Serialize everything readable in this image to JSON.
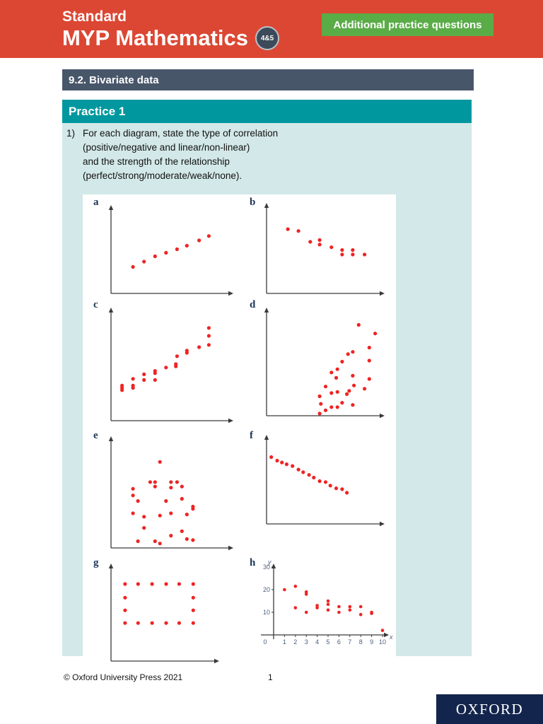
{
  "header": {
    "edition": "Standard",
    "title": "MYP Mathematics",
    "badge": "4&5",
    "button_label": "Additional practice questions"
  },
  "section_bar": {
    "title": "9.2. Bivariate data"
  },
  "practice": {
    "title": "Practice 1",
    "question": {
      "number": "1)",
      "lines": [
        "For each diagram, state the type of correlation",
        "(positive/negative and linear/non-linear)",
        "and the strength of the relationship",
        "(perfect/strong/moderate/weak/none)."
      ]
    }
  },
  "chart_data": [
    {
      "id": "a",
      "type": "scatter",
      "points_norm": [
        [
          18,
          30
        ],
        [
          27,
          36
        ],
        [
          36,
          42
        ],
        [
          45,
          46
        ],
        [
          54,
          50
        ],
        [
          62,
          54
        ],
        [
          72,
          60
        ],
        [
          80,
          65
        ]
      ]
    },
    {
      "id": "b",
      "type": "scatter",
      "points_norm": [
        [
          18,
          71
        ],
        [
          27,
          69
        ],
        [
          37,
          57
        ],
        [
          45,
          59
        ],
        [
          45,
          54
        ],
        [
          55,
          51
        ],
        [
          64,
          48
        ],
        [
          64,
          43
        ],
        [
          73,
          48
        ],
        [
          73,
          43
        ],
        [
          83,
          43
        ]
      ]
    },
    {
      "id": "c",
      "type": "scatter",
      "points_norm": [
        [
          9,
          31
        ],
        [
          9,
          29
        ],
        [
          9,
          27
        ],
        [
          18,
          37
        ],
        [
          18,
          31
        ],
        [
          18,
          29
        ],
        [
          27,
          41
        ],
        [
          27,
          36
        ],
        [
          36,
          44
        ],
        [
          36,
          42
        ],
        [
          36,
          36
        ],
        [
          45,
          47
        ],
        [
          53,
          50
        ],
        [
          53,
          48
        ],
        [
          54,
          57
        ],
        [
          62,
          62
        ],
        [
          62,
          60
        ],
        [
          72,
          65
        ],
        [
          80,
          82
        ],
        [
          80,
          75
        ],
        [
          80,
          67
        ]
      ]
    },
    {
      "id": "d",
      "type": "scatter",
      "points_norm": [
        [
          78,
          84
        ],
        [
          92,
          76
        ],
        [
          87,
          63
        ],
        [
          69,
          57
        ],
        [
          73,
          59
        ],
        [
          87,
          51
        ],
        [
          64,
          50
        ],
        [
          55,
          40
        ],
        [
          60,
          43
        ],
        [
          59,
          35
        ],
        [
          73,
          37
        ],
        [
          87,
          34
        ],
        [
          50,
          27
        ],
        [
          74,
          28
        ],
        [
          83,
          25
        ],
        [
          55,
          21
        ],
        [
          60,
          22
        ],
        [
          68,
          20
        ],
        [
          70,
          23
        ],
        [
          45,
          18
        ],
        [
          64,
          12
        ],
        [
          73,
          10
        ],
        [
          46,
          11
        ],
        [
          55,
          8
        ],
        [
          60,
          8
        ],
        [
          45,
          2
        ],
        [
          50,
          5
        ]
      ]
    },
    {
      "id": "e",
      "type": "scatter",
      "points_norm": [
        [
          40,
          77
        ],
        [
          32,
          59
        ],
        [
          36,
          59
        ],
        [
          36,
          55
        ],
        [
          49,
          59
        ],
        [
          54,
          59
        ],
        [
          49,
          54
        ],
        [
          58,
          55
        ],
        [
          18,
          53
        ],
        [
          18,
          47
        ],
        [
          22,
          42
        ],
        [
          45,
          42
        ],
        [
          58,
          44
        ],
        [
          67,
          37
        ],
        [
          67,
          35
        ],
        [
          18,
          31
        ],
        [
          27,
          28
        ],
        [
          40,
          29
        ],
        [
          49,
          31
        ],
        [
          62,
          30
        ],
        [
          27,
          18
        ],
        [
          58,
          15
        ],
        [
          49,
          11
        ],
        [
          62,
          8
        ],
        [
          67,
          7
        ],
        [
          22,
          6
        ],
        [
          36,
          6
        ],
        [
          40,
          4
        ]
      ]
    },
    {
      "id": "f",
      "type": "scatter",
      "points_norm": [
        [
          4,
          75
        ],
        [
          9,
          71
        ],
        [
          13,
          69
        ],
        [
          17,
          67
        ],
        [
          22,
          65
        ],
        [
          27,
          61
        ],
        [
          31,
          58
        ],
        [
          36,
          55
        ],
        [
          40,
          52
        ],
        [
          45,
          48
        ],
        [
          50,
          47
        ],
        [
          54,
          43
        ],
        [
          59,
          40
        ],
        [
          64,
          39
        ],
        [
          68,
          35
        ]
      ]
    },
    {
      "id": "g",
      "type": "scatter",
      "points_norm": [
        [
          13,
          79
        ],
        [
          25,
          79
        ],
        [
          38,
          79
        ],
        [
          51,
          79
        ],
        [
          63,
          79
        ],
        [
          76,
          79
        ],
        [
          13,
          65
        ],
        [
          76,
          65
        ],
        [
          13,
          52
        ],
        [
          76,
          52
        ],
        [
          13,
          39
        ],
        [
          25,
          39
        ],
        [
          38,
          39
        ],
        [
          51,
          39
        ],
        [
          63,
          39
        ],
        [
          76,
          39
        ]
      ]
    },
    {
      "id": "h",
      "type": "scatter",
      "xlabel": "x",
      "ylabel": "y",
      "origin_label": "0",
      "x_ticks": [
        1,
        2,
        3,
        4,
        5,
        6,
        7,
        8,
        9,
        10
      ],
      "y_ticks": [
        10,
        20,
        30
      ],
      "xlim": [
        0,
        10.5
      ],
      "ylim": [
        0,
        32
      ],
      "points": [
        [
          1,
          20
        ],
        [
          2,
          21.5
        ],
        [
          2,
          12
        ],
        [
          3,
          19
        ],
        [
          3,
          18
        ],
        [
          3,
          10
        ],
        [
          4,
          13
        ],
        [
          4,
          12
        ],
        [
          5,
          15
        ],
        [
          5,
          13.5
        ],
        [
          5,
          11
        ],
        [
          6,
          12.5
        ],
        [
          6,
          10
        ],
        [
          7,
          12.5
        ],
        [
          7,
          11
        ],
        [
          8,
          12.5
        ],
        [
          8,
          9
        ],
        [
          9,
          10
        ],
        [
          9,
          9.5
        ],
        [
          10,
          2
        ]
      ]
    }
  ],
  "footer": {
    "copyright": "© Oxford University Press 2021",
    "page": "1",
    "logo": "OXFORD"
  },
  "colors": {
    "masthead_red": "#dc4733",
    "button_green": "#5aac47",
    "section_slate": "#48566a",
    "practice_teal": "#00989e",
    "body_light_teal": "#d3e8e8",
    "oxford_navy": "#13254d",
    "dot": "#ee2424",
    "axis": "#3a3a3a",
    "tick_label": "#4a5d7e"
  }
}
